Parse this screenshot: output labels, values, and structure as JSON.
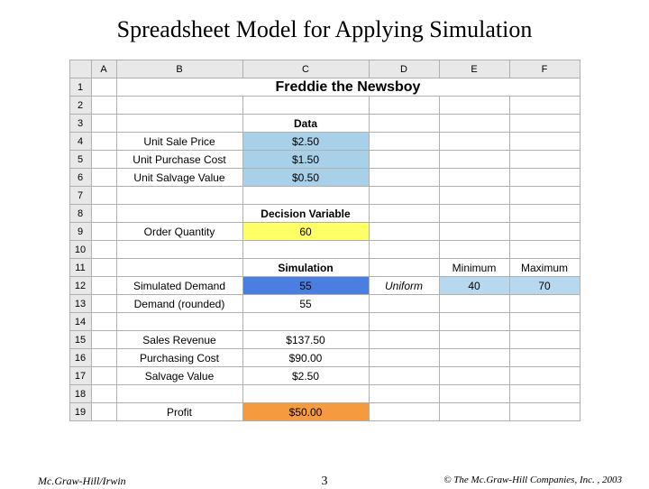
{
  "slide": {
    "title": "Spreadsheet Model for Applying Simulation",
    "page_number": "3",
    "footer_left": "Mc.Graw-Hill/Irwin",
    "footer_right": "© The Mc.Graw-Hill Companies, Inc. , 2003"
  },
  "spreadsheet": {
    "columns": [
      "A",
      "B",
      "C",
      "D",
      "E",
      "F"
    ],
    "title_cell": "Freddie the Newsboy",
    "rows": {
      "r3": {
        "c": "Data",
        "c_bold": true
      },
      "r4": {
        "b": "Unit Sale Price",
        "c": "$2.50",
        "c_class": "hl-lightblue"
      },
      "r5": {
        "b": "Unit Purchase Cost",
        "c": "$1.50",
        "c_class": "hl-lightblue"
      },
      "r6": {
        "b": "Unit Salvage Value",
        "c": "$0.50",
        "c_class": "hl-lightblue"
      },
      "r8": {
        "c": "Decision Variable",
        "c_bold": true
      },
      "r9": {
        "b": "Order Quantity",
        "c": "60",
        "c_class": "hl-yellow"
      },
      "r11": {
        "c": "Simulation",
        "c_bold": true,
        "e": "Minimum",
        "f": "Maximum"
      },
      "r12": {
        "b": "Simulated Demand",
        "c": "55",
        "c_class": "hl-blue",
        "d": "Uniform",
        "d_italic": true,
        "e": "40",
        "e_class": "hl-lightblue2",
        "f": "70",
        "f_class": "hl-lightblue2"
      },
      "r13": {
        "b": "Demand (rounded)",
        "c": "55"
      },
      "r15": {
        "b": "Sales Revenue",
        "c": "$137.50"
      },
      "r16": {
        "b": "Purchasing Cost",
        "c": "$90.00"
      },
      "r17": {
        "b": "Salvage Value",
        "c": "$2.50"
      },
      "r19": {
        "b": "Profit",
        "c": "$50.00",
        "c_class": "hl-orange"
      }
    },
    "colors": {
      "header_bg": "#e8e8e8",
      "border": "#b0b0b0",
      "lightblue": "#a8d0e8",
      "yellow": "#ffff66",
      "blue": "#4a7ee0",
      "lightblue2": "#b8d8f0",
      "orange": "#f59a3e"
    }
  }
}
